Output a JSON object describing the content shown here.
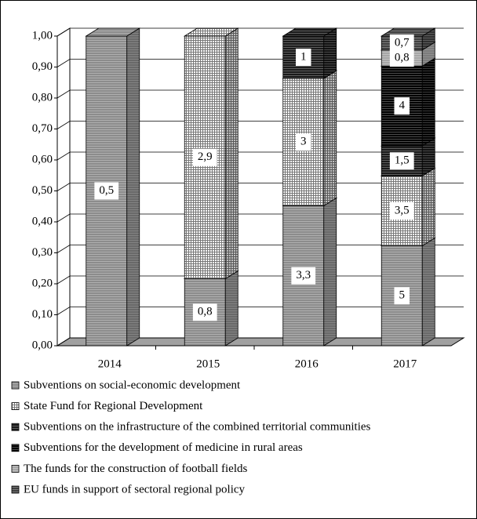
{
  "chart_data": {
    "type": "bar",
    "stacking": "percent",
    "categories": [
      "2014",
      "2015",
      "2016",
      "2017"
    ],
    "series": [
      {
        "name": "Subventions on social-economic development",
        "color": "#8c8c8c",
        "values": [
          0.5,
          0.8,
          3.3,
          5
        ],
        "value_labels": [
          "0,5",
          "0,8",
          "3,3",
          "5"
        ]
      },
      {
        "name": "State Fund for Regional Development",
        "color": "#ffffff",
        "values": [
          null,
          2.9,
          3,
          3.5
        ],
        "value_labels": [
          null,
          "2,9",
          "3",
          "3,5"
        ]
      },
      {
        "name": "Subventions on the infrastructure of the combined territorial communities",
        "color": "#1a1a1a",
        "values": [
          null,
          null,
          1,
          1.5
        ],
        "value_labels": [
          null,
          null,
          "1",
          "1,5"
        ]
      },
      {
        "name": "Subventions for the development of medicine in rural areas",
        "color": "#000000",
        "values": [
          null,
          null,
          null,
          4
        ],
        "value_labels": [
          null,
          null,
          null,
          "4"
        ]
      },
      {
        "name": "The funds for the construction of football fields",
        "color": "#a6a6a6",
        "values": [
          null,
          null,
          null,
          0.8
        ],
        "value_labels": [
          null,
          null,
          null,
          "0,8"
        ]
      },
      {
        "name": "EU funds in support of sectoral regional policy",
        "color": "#404040",
        "values": [
          null,
          null,
          null,
          0.7
        ],
        "value_labels": [
          null,
          null,
          null,
          "0,7"
        ]
      }
    ],
    "ylim": [
      0,
      1
    ],
    "yticks": [
      {
        "value": 0,
        "label": "0,00"
      },
      {
        "value": 0.1,
        "label": "0,10"
      },
      {
        "value": 0.2,
        "label": "0,20"
      },
      {
        "value": 0.3,
        "label": "0,30"
      },
      {
        "value": 0.4,
        "label": "0,40"
      },
      {
        "value": 0.5,
        "label": "0,50"
      },
      {
        "value": 0.6,
        "label": "0,60"
      },
      {
        "value": 0.7,
        "label": "0,70"
      },
      {
        "value": 0.8,
        "label": "0,80"
      },
      {
        "value": 0.9,
        "label": "0,90"
      },
      {
        "value": 1,
        "label": "1,00"
      }
    ],
    "grid": true,
    "legend": "bottom"
  }
}
